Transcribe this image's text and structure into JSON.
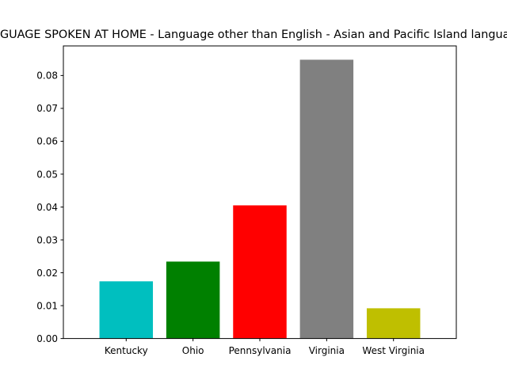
{
  "chart_data": {
    "type": "bar",
    "title": "LANGUAGE SPOKEN AT HOME - Language other than English - Asian and Pacific Island languages",
    "xlabel": "",
    "ylabel": "",
    "categories": [
      "Kentucky",
      "Ohio",
      "Pennsylvania",
      "Virginia",
      "West Virginia"
    ],
    "values": [
      0.0174,
      0.0234,
      0.0405,
      0.0848,
      0.0092
    ],
    "colors": [
      "#00bfbf",
      "#008000",
      "#ff0000",
      "#808080",
      "#bfbf00"
    ],
    "ylim": [
      0,
      0.089
    ],
    "yticks": [
      "0.00",
      "0.01",
      "0.02",
      "0.03",
      "0.04",
      "0.05",
      "0.06",
      "0.07",
      "0.08"
    ],
    "grid": false,
    "legend": "none"
  }
}
